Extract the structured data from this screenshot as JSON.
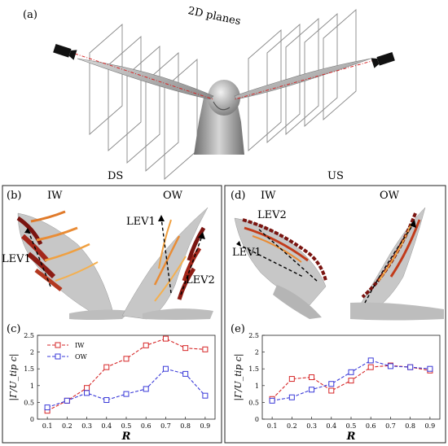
{
  "panel_a": {
    "label": "(a)",
    "planes_label": "2D planes",
    "left_side": "DS",
    "right_side": "US"
  },
  "panel_b": {
    "label": "(b)",
    "wing_left": "IW",
    "wing_right": "OW",
    "lev_left": "LEV1",
    "lev_right_top": "LEV1",
    "lev_right_bottom": "LEV2"
  },
  "panel_d": {
    "label": "(d)",
    "wing_left": "IW",
    "wing_right": "OW",
    "lev_top": "LEV2",
    "lev_mid": "LEV1"
  },
  "colors": {
    "iw": "#d62728",
    "ow": "#3a3ad8",
    "vortex_dark": "#7a1410",
    "vortex_mid": "#c23b1a",
    "vortex_light": "#f0a040",
    "wing_gray": "#a8a8a8"
  },
  "chart_data": [
    {
      "panel": "(c)",
      "type": "line",
      "ylabel": "|Γ/U_tip c|",
      "xlabel": "R",
      "x": [
        0.1,
        0.2,
        0.3,
        0.4,
        0.5,
        0.6,
        0.7,
        0.8,
        0.9
      ],
      "xlim": [
        0.05,
        0.95
      ],
      "ylim": [
        0,
        2.5
      ],
      "yticks": [
        "0",
        "0.5",
        "1",
        "1.5",
        "2",
        "2.5"
      ],
      "xticks": [
        "0.1",
        "0.2",
        "0.3",
        "0.4",
        "0.5",
        "0.6",
        "0.7",
        "0.8",
        "0.9"
      ],
      "legend": "top-left",
      "series": [
        {
          "name": "IW",
          "values": [
            0.25,
            0.55,
            0.93,
            1.55,
            1.8,
            2.2,
            2.4,
            2.12,
            2.08
          ]
        },
        {
          "name": "OW",
          "values": [
            0.35,
            0.55,
            0.78,
            0.57,
            0.75,
            0.9,
            1.5,
            1.35,
            0.7
          ]
        }
      ]
    },
    {
      "panel": "(e)",
      "type": "line",
      "ylabel": "|Γ/U_tip c|",
      "xlabel": "R",
      "x": [
        0.1,
        0.2,
        0.3,
        0.4,
        0.5,
        0.6,
        0.7,
        0.8,
        0.9
      ],
      "xlim": [
        0.05,
        0.95
      ],
      "ylim": [
        0,
        2.5
      ],
      "yticks": [
        "0",
        "0.5",
        "1",
        "1.5",
        "2",
        "2.5"
      ],
      "xticks": [
        "0.1",
        "0.2",
        "0.3",
        "0.4",
        "0.5",
        "0.6",
        "0.7",
        "0.8",
        "0.9"
      ],
      "series": [
        {
          "name": "",
          "values": [
            0.6,
            1.2,
            1.25,
            0.85,
            1.15,
            1.55,
            1.6,
            1.55,
            1.45
          ]
        },
        {
          "name": "",
          "values": [
            0.55,
            0.65,
            0.88,
            1.05,
            1.4,
            1.75,
            1.58,
            1.55,
            1.5
          ]
        }
      ]
    }
  ]
}
